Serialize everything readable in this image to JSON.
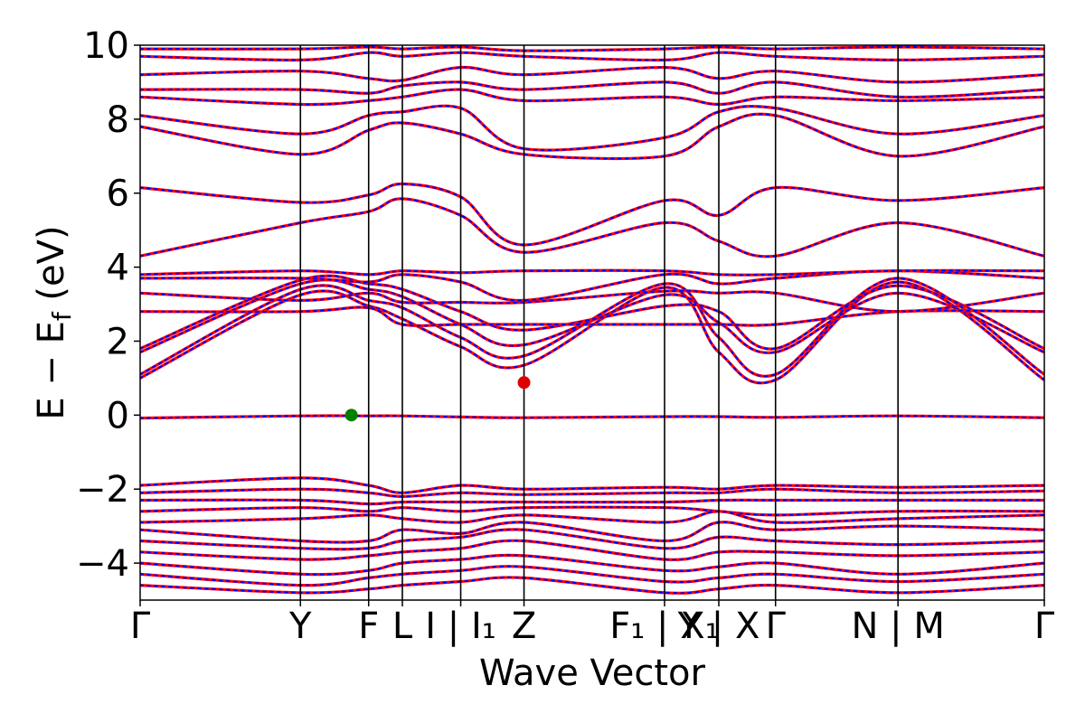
{
  "chart_data": {
    "type": "line",
    "title": "",
    "xlabel": "Wave Vector",
    "ylabel": {
      "main": "E − E",
      "subscript": "f",
      "unit": " (eV)"
    },
    "ylim": [
      -5,
      10
    ],
    "yticks": [
      {
        "value": 10,
        "label": "10"
      },
      {
        "value": 8,
        "label": "8"
      },
      {
        "value": 6,
        "label": "6"
      },
      {
        "value": 4,
        "label": "4"
      },
      {
        "value": 2,
        "label": "2"
      },
      {
        "value": 0,
        "label": "0"
      },
      {
        "value": -2,
        "label": "−2"
      },
      {
        "value": -4,
        "label": "−4"
      }
    ],
    "xlim": [
      0,
      11
    ],
    "kpoints": [
      {
        "x": 0.0,
        "label": "Γ"
      },
      {
        "x": 1.95,
        "label": "Y"
      },
      {
        "x": 2.78,
        "label": "F"
      },
      {
        "x": 3.19,
        "label": "L"
      },
      {
        "x": 3.9,
        "label": "I | I₁"
      },
      {
        "x": 4.67,
        "label": "Z"
      },
      {
        "x": 6.38,
        "label": "F₁ | X₁"
      },
      {
        "x": 7.04,
        "label": "Y | X"
      },
      {
        "x": 7.73,
        "label": "Γ"
      },
      {
        "x": 9.22,
        "label": "N | M"
      },
      {
        "x": 11.0,
        "label": "Γ"
      }
    ],
    "highlights": [
      {
        "name": "VBM",
        "x": 2.57,
        "y": 0.0,
        "color": "#008000"
      },
      {
        "name": "CBM",
        "x": 4.67,
        "y": 0.88,
        "color": "#e00000"
      }
    ],
    "series_styles": [
      {
        "role": "spin-up",
        "color": "#ff0000",
        "style": "solid"
      },
      {
        "role": "spin-down",
        "color": "#0000ff",
        "style": "dotted"
      }
    ],
    "bands": [
      {
        "y": [
          -0.08,
          -0.02,
          -0.02,
          -0.02,
          -0.05,
          -0.07,
          -0.04,
          -0.04,
          -0.06,
          -0.02,
          -0.07
        ]
      },
      {
        "y": [
          1.0,
          3.25,
          2.95,
          2.6,
          1.85,
          1.35,
          3.45,
          1.7,
          0.95,
          3.6,
          0.95
        ]
      },
      {
        "y": [
          1.1,
          3.4,
          3.1,
          2.9,
          2.1,
          1.6,
          3.55,
          2.1,
          1.1,
          3.7,
          1.1
        ]
      },
      {
        "y": [
          1.7,
          3.55,
          3.4,
          3.2,
          2.45,
          1.9,
          3.25,
          2.5,
          1.7,
          3.3,
          1.7
        ]
      },
      {
        "y": [
          1.8,
          3.65,
          3.55,
          3.4,
          2.8,
          2.3,
          2.95,
          2.8,
          1.8,
          3.5,
          1.8
        ]
      },
      {
        "y": [
          2.8,
          2.8,
          2.9,
          2.45,
          2.45,
          2.45,
          2.45,
          2.45,
          2.45,
          2.8,
          2.8
        ]
      },
      {
        "y": [
          3.3,
          3.1,
          3.3,
          3.05,
          3.05,
          3.05,
          3.35,
          3.3,
          3.3,
          2.8,
          3.3
        ]
      },
      {
        "y": [
          3.7,
          3.7,
          3.6,
          3.8,
          3.6,
          3.1,
          3.8,
          3.55,
          3.7,
          3.9,
          3.7
        ]
      },
      {
        "y": [
          3.8,
          3.9,
          3.8,
          3.9,
          3.85,
          3.9,
          3.9,
          3.8,
          3.8,
          3.9,
          3.9
        ]
      },
      {
        "y": [
          4.3,
          5.2,
          5.5,
          5.85,
          5.4,
          4.4,
          5.2,
          4.7,
          4.3,
          5.2,
          4.3
        ]
      },
      {
        "y": [
          6.15,
          5.75,
          5.95,
          6.25,
          5.9,
          4.6,
          5.8,
          5.4,
          6.15,
          5.8,
          6.15
        ]
      },
      {
        "y": [
          7.8,
          7.05,
          7.7,
          7.9,
          7.6,
          7.05,
          7.0,
          7.8,
          8.1,
          7.0,
          7.8
        ]
      },
      {
        "y": [
          8.1,
          7.6,
          8.1,
          8.2,
          8.3,
          7.2,
          7.5,
          8.2,
          8.3,
          7.6,
          8.1
        ]
      },
      {
        "y": [
          8.6,
          8.4,
          8.5,
          8.6,
          8.8,
          8.5,
          8.6,
          8.4,
          8.6,
          8.5,
          8.6
        ]
      },
      {
        "y": [
          8.8,
          8.8,
          8.7,
          8.9,
          9.0,
          8.8,
          9.0,
          8.7,
          9.0,
          8.6,
          8.8
        ]
      },
      {
        "y": [
          9.2,
          9.3,
          9.1,
          9.05,
          9.4,
          9.2,
          9.4,
          9.1,
          9.3,
          9.0,
          9.2
        ]
      },
      {
        "y": [
          9.7,
          9.6,
          9.8,
          9.7,
          9.8,
          9.7,
          9.6,
          9.8,
          9.7,
          9.6,
          9.7
        ]
      },
      {
        "y": [
          9.9,
          9.9,
          9.95,
          9.9,
          9.95,
          9.85,
          9.9,
          9.95,
          9.9,
          9.95,
          9.9
        ]
      },
      {
        "y": [
          -1.9,
          -1.7,
          -1.9,
          -2.1,
          -1.9,
          -2.0,
          -1.95,
          -2.0,
          -1.9,
          -1.95,
          -1.9
        ]
      },
      {
        "y": [
          -2.1,
          -2.0,
          -2.1,
          -2.2,
          -2.1,
          -2.15,
          -2.1,
          -2.1,
          -2.0,
          -2.1,
          -2.05
        ]
      },
      {
        "y": [
          -2.3,
          -2.3,
          -2.4,
          -2.35,
          -2.35,
          -2.35,
          -2.35,
          -2.3,
          -2.3,
          -2.3,
          -2.3
        ]
      },
      {
        "y": [
          -2.6,
          -2.5,
          -2.6,
          -2.5,
          -2.6,
          -2.5,
          -2.5,
          -2.6,
          -2.7,
          -2.6,
          -2.6
        ]
      },
      {
        "y": [
          -2.9,
          -2.8,
          -2.7,
          -2.8,
          -2.9,
          -2.7,
          -2.9,
          -2.6,
          -2.9,
          -2.8,
          -2.7
        ]
      },
      {
        "y": [
          -3.1,
          -3.4,
          -3.4,
          -3.1,
          -3.2,
          -2.9,
          -3.4,
          -2.9,
          -3.1,
          -3.0,
          -3.1
        ]
      },
      {
        "y": [
          -3.4,
          -3.6,
          -3.6,
          -3.4,
          -3.3,
          -3.1,
          -3.6,
          -3.3,
          -3.4,
          -3.5,
          -3.4
        ]
      },
      {
        "y": [
          -3.7,
          -3.9,
          -3.8,
          -3.7,
          -3.6,
          -3.4,
          -3.9,
          -3.7,
          -3.7,
          -3.8,
          -3.7
        ]
      },
      {
        "y": [
          -4.0,
          -4.3,
          -4.2,
          -4.0,
          -3.9,
          -3.8,
          -4.2,
          -4.1,
          -4.0,
          -4.3,
          -4.0
        ]
      },
      {
        "y": [
          -4.3,
          -4.6,
          -4.4,
          -4.3,
          -4.2,
          -4.1,
          -4.5,
          -4.4,
          -4.3,
          -4.5,
          -4.3
        ]
      },
      {
        "y": [
          -4.6,
          -4.8,
          -4.7,
          -4.6,
          -4.5,
          -4.4,
          -4.8,
          -4.7,
          -4.6,
          -4.8,
          -4.6
        ]
      }
    ]
  }
}
